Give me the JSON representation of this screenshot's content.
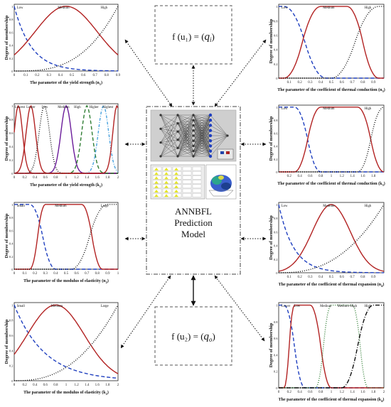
{
  "center": {
    "title_line1": "ANNBFL",
    "title_line2": "Prediction",
    "title_line3": "Model"
  },
  "formula_top": {
    "lhs": "f (u₁) = (",
    "var": "q",
    "sub": "i",
    "rhs": ")"
  },
  "formula_bottom": {
    "lhs": "f (u₂) = (",
    "var": "q",
    "sub": "o",
    "rhs": ")"
  },
  "colors": {
    "red": "#b22222",
    "blue": "#1f3fbf",
    "black": "#111111",
    "green": "#2e7d32",
    "purple": "#6a1b9a",
    "cyan": "#4aa3df",
    "olive": "#2f4f2f"
  },
  "plots": [
    {
      "id": "yield-1",
      "ylabel": "Degree of membership",
      "xlabel": "The parameter of the yield strength (n",
      "xlabel_sub": "1",
      "xticks": [
        "0",
        "0.1",
        "0.2",
        "0.3",
        "0.4",
        "0.5",
        "0.6",
        "0.7",
        "0.8",
        "0.9"
      ],
      "yticks": [
        "0",
        "0.1",
        "0.2",
        "0.3",
        "0.4",
        "0.5",
        "0.6",
        "0.7",
        "0.8",
        "0.9",
        "1"
      ],
      "labels": [
        "Low",
        "Medium",
        "High"
      ]
    },
    {
      "id": "yield-2",
      "ylabel": "Degree of membership",
      "xlabel": "The parameter of the yield strength (k",
      "xlabel_sub": "1",
      "xticks": [
        "0",
        "0.2",
        "0.4",
        "0.6",
        "0.8",
        "1",
        "1.2",
        "1.4",
        "1.6",
        "1.8",
        "2"
      ],
      "yticks": [
        "0",
        "0.1",
        "0.2",
        "0.3",
        "0.4",
        "0.5",
        "0.6",
        "0.7",
        "0.8",
        "0.9",
        "1"
      ],
      "labels": [
        "Lowest",
        "Lower",
        "Low",
        "Medium",
        "High",
        "Higher",
        "Highest"
      ]
    },
    {
      "id": "elasticity-1",
      "ylabel": "Degree of membership",
      "xlabel": "The parameter of the modulus of elasticity (n",
      "xlabel_sub": "2",
      "xticks": [
        "0",
        "0.1",
        "0.2",
        "0.3",
        "0.4",
        "0.5",
        "0.6",
        "0.7",
        "0.8",
        "0.9",
        "1"
      ],
      "yticks": [
        "0",
        "0.1",
        "0.2",
        "0.3",
        "0.4",
        "0.5",
        "0.6",
        "0.7",
        "0.8",
        "0.9",
        "1"
      ],
      "labels": [
        "Small",
        "Medium",
        "Large"
      ]
    },
    {
      "id": "elasticity-2",
      "ylabel": "Degree of membership",
      "xlabel": "The parameter of the modulus of elasticity (k",
      "xlabel_sub": "2",
      "xticks": [
        "0",
        "0.2",
        "0.4",
        "0.6",
        "0.8",
        "1",
        "1.2",
        "1.4",
        "1.6",
        "1.8",
        "2"
      ],
      "yticks": [
        "0",
        "0.1",
        "0.2",
        "0.3",
        "0.4",
        "0.5",
        "0.6",
        "0.7",
        "0.8",
        "0.9",
        "1"
      ],
      "labels": [
        "Small",
        "Medium",
        "Large"
      ]
    },
    {
      "id": "conduction-1",
      "ylabel": "Degree of membership",
      "xlabel": "The parameter of the coefficient of thermal conduction (n",
      "xlabel_sub": "3",
      "xticks": [
        "0.1",
        "0.2",
        "0.3",
        "0.4",
        "0.5",
        "0.6",
        "0.7",
        "0.8",
        "0.9"
      ],
      "yticks": [
        "0",
        "0.1",
        "0.2",
        "0.3",
        "0.4",
        "0.5",
        "0.6",
        "0.7",
        "0.8",
        "0.9",
        "1"
      ],
      "labels": [
        "Low",
        "Medium",
        "High"
      ]
    },
    {
      "id": "conduction-2",
      "ylabel": "Degree of membership",
      "xlabel": "The parameter of the coefficient of thermal conduction (k",
      "xlabel_sub": "3",
      "xticks": [
        "0.2",
        "0.4",
        "0.6",
        "0.8",
        "1",
        "1.2",
        "1.4",
        "1.6",
        "1.8"
      ],
      "yticks": [
        "0",
        "0.1",
        "0.2",
        "0.3",
        "0.4",
        "0.5",
        "0.6",
        "0.7",
        "0.8",
        "0.9",
        "1"
      ],
      "labels": [
        "Low",
        "Medium",
        "High"
      ]
    },
    {
      "id": "expansion-1",
      "ylabel": "Degree of membership",
      "xlabel": "The parameter of the coefficient of thermal expansion (n",
      "xlabel_sub": "4",
      "xticks": [
        "0.1",
        "0.2",
        "0.3",
        "0.4",
        "0.5",
        "0.6",
        "0.7",
        "0.8",
        "0.9"
      ],
      "yticks": [
        "0",
        "0.1",
        "0.2",
        "0.3",
        "0.4",
        "0.5",
        "0.6",
        "0.7",
        "0.8",
        "0.9",
        "1"
      ],
      "labels": [
        "Low",
        "Medium",
        "High"
      ]
    },
    {
      "id": "expansion-2",
      "ylabel": "Degree of membership",
      "xlabel": "The parameter of the coefficient of thermal expansion (k",
      "xlabel_sub": "4",
      "xticks": [
        "0",
        "0.2",
        "0.4",
        "0.6",
        "0.8",
        "1",
        "1.2",
        "1.4",
        "1.6",
        "1.8",
        "2"
      ],
      "yticks": [
        "0",
        "0.1",
        "0.2",
        "0.3",
        "0.4",
        "0.5",
        "0.6",
        "0.7",
        "0.8",
        "0.9",
        "1"
      ],
      "labels": [
        "Lower",
        "Low",
        "Medium",
        "Medium-High",
        "High"
      ]
    }
  ]
}
